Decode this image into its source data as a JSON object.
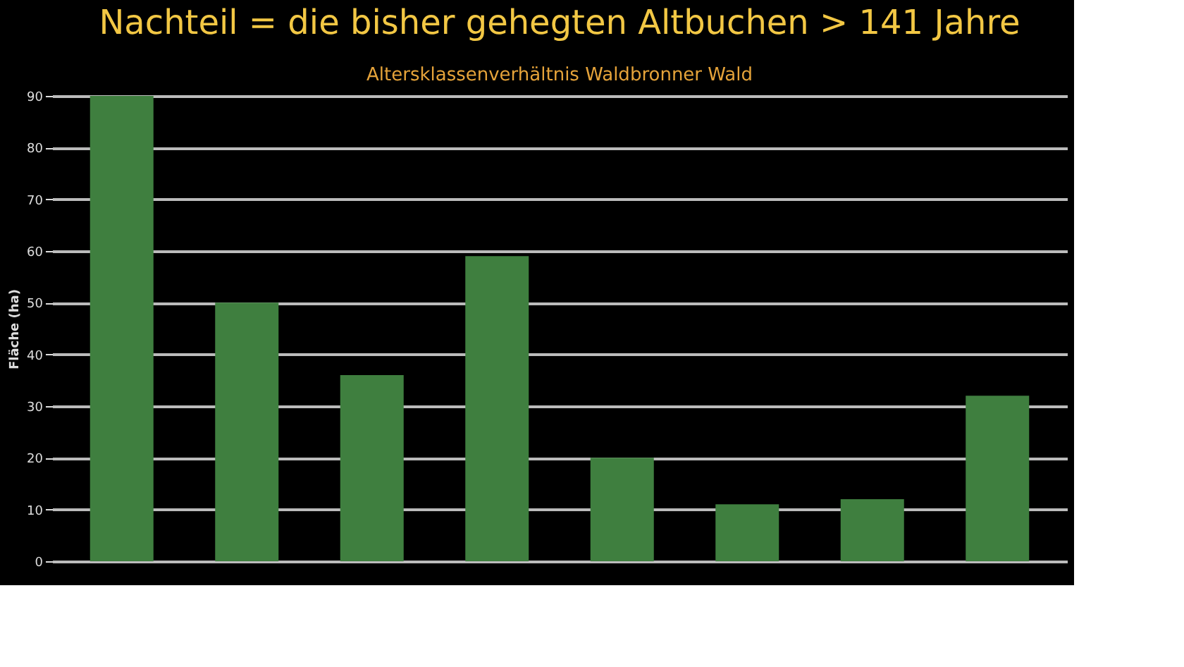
{
  "chart_data": {
    "type": "bar",
    "title": "Nachteil = die bisher gehegten Altbuchen > 141 Jahre",
    "subtitle": "Altersklassenverhältnis Waldbronner Wald",
    "ylabel": "Fläche (ha)",
    "categories": [
      null,
      null,
      null,
      null,
      null,
      null,
      null,
      null
    ],
    "values": [
      90,
      50,
      36,
      59,
      20,
      11,
      12,
      32
    ],
    "color": "#3f7f3f",
    "ylim": [
      0,
      90
    ],
    "yticks": [
      0,
      10,
      20,
      30,
      40,
      50,
      60,
      70,
      80,
      90
    ],
    "grid": "y"
  }
}
